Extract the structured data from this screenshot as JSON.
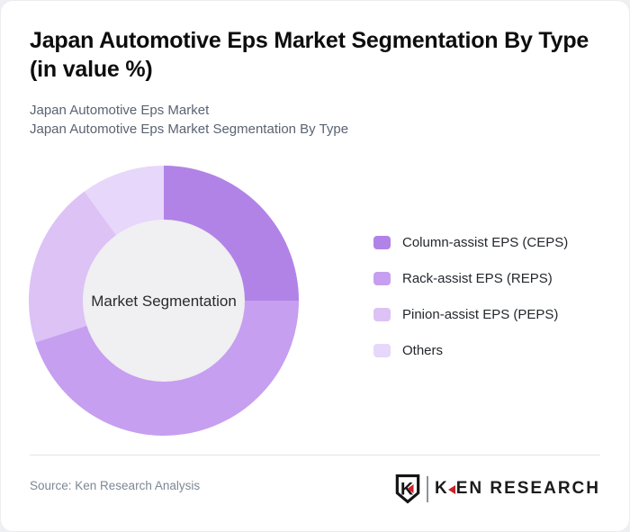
{
  "page": {
    "title": "Japan Automotive Eps Market Segmentation By Type (in value %)",
    "subtitle1": "Japan Automotive Eps Market",
    "subtitle2": "Japan Automotive Eps Market Segmentation By Type"
  },
  "chart_data": {
    "type": "pie",
    "subtype": "donut",
    "title": "Japan Automotive Eps Market Segmentation By Type (in value %)",
    "center_label": "Market Segmentation",
    "categories": [
      "Column-assist EPS (CEPS)",
      "Rack-assist EPS (REPS)",
      "Pinion-assist EPS (PEPS)",
      "Others"
    ],
    "values": [
      25,
      45,
      20,
      10
    ],
    "unit": "%",
    "colors": [
      "#b183e7",
      "#c69ff0",
      "#dcc2f5",
      "#e7d7fa"
    ],
    "center_fill": "#f0eff1",
    "start_angle_deg": 0,
    "direction": "clockwise",
    "inner_radius_ratio": 0.6,
    "legend_position": "right"
  },
  "footer": {
    "source": "Source: Ken Research Analysis",
    "logo": {
      "mark_letter": "K",
      "wordmark_k": "K",
      "wordmark_rest": "EN RESEARCH",
      "red": "#c8242b"
    }
  }
}
